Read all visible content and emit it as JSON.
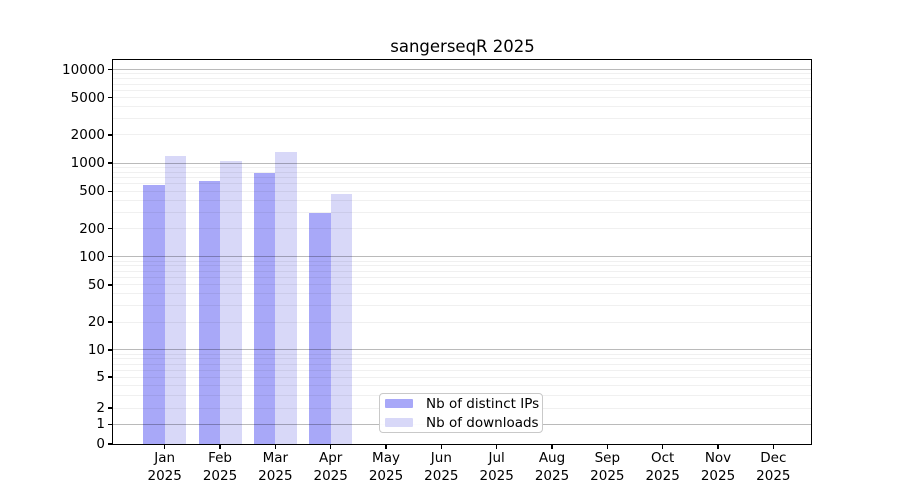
{
  "chart": {
    "title": "sangerseqR 2025"
  },
  "chart_data": {
    "type": "bar",
    "title": "sangerseqR 2025",
    "categories": [
      "Jan 2025",
      "Feb 2025",
      "Mar 2025",
      "Apr 2025",
      "May 2025",
      "Jun 2025",
      "Jul 2025",
      "Aug 2025",
      "Sep 2025",
      "Oct 2025",
      "Nov 2025",
      "Dec 2025"
    ],
    "months": [
      "Jan",
      "Feb",
      "Mar",
      "Apr",
      "May",
      "Jun",
      "Jul",
      "Aug",
      "Sep",
      "Oct",
      "Nov",
      "Dec"
    ],
    "year": "2025",
    "series": [
      {
        "name": "Nb of distinct IPs",
        "color": "#a8a8f8",
        "values": [
          580,
          640,
          780,
          290,
          null,
          null,
          null,
          null,
          null,
          null,
          null,
          null
        ]
      },
      {
        "name": "Nb of downloads",
        "color": "#d8d8f8",
        "values": [
          1200,
          1050,
          1300,
          470,
          null,
          null,
          null,
          null,
          null,
          null,
          null,
          null
        ]
      }
    ],
    "y_axis": {
      "ticks": [
        0,
        1,
        2,
        5,
        10,
        20,
        50,
        100,
        200,
        500,
        1000,
        2000,
        5000,
        10000
      ],
      "ylim": [
        0,
        10000
      ],
      "scale": "asinh (log-like above ~2, linear near 0)"
    },
    "x_axis": {
      "tick_label_format": "month newline year"
    },
    "grid": {
      "on": true,
      "decade_lines": [
        1,
        10,
        100,
        1000,
        10000
      ],
      "minor_line_color": "rgba(0,0,0,0.06)",
      "decade_line_color": "rgba(0,0,0,0.27)"
    },
    "legend": {
      "position": "bottom-center-inside",
      "entries": [
        "Nb of distinct IPs",
        "Nb of downloads"
      ]
    }
  }
}
